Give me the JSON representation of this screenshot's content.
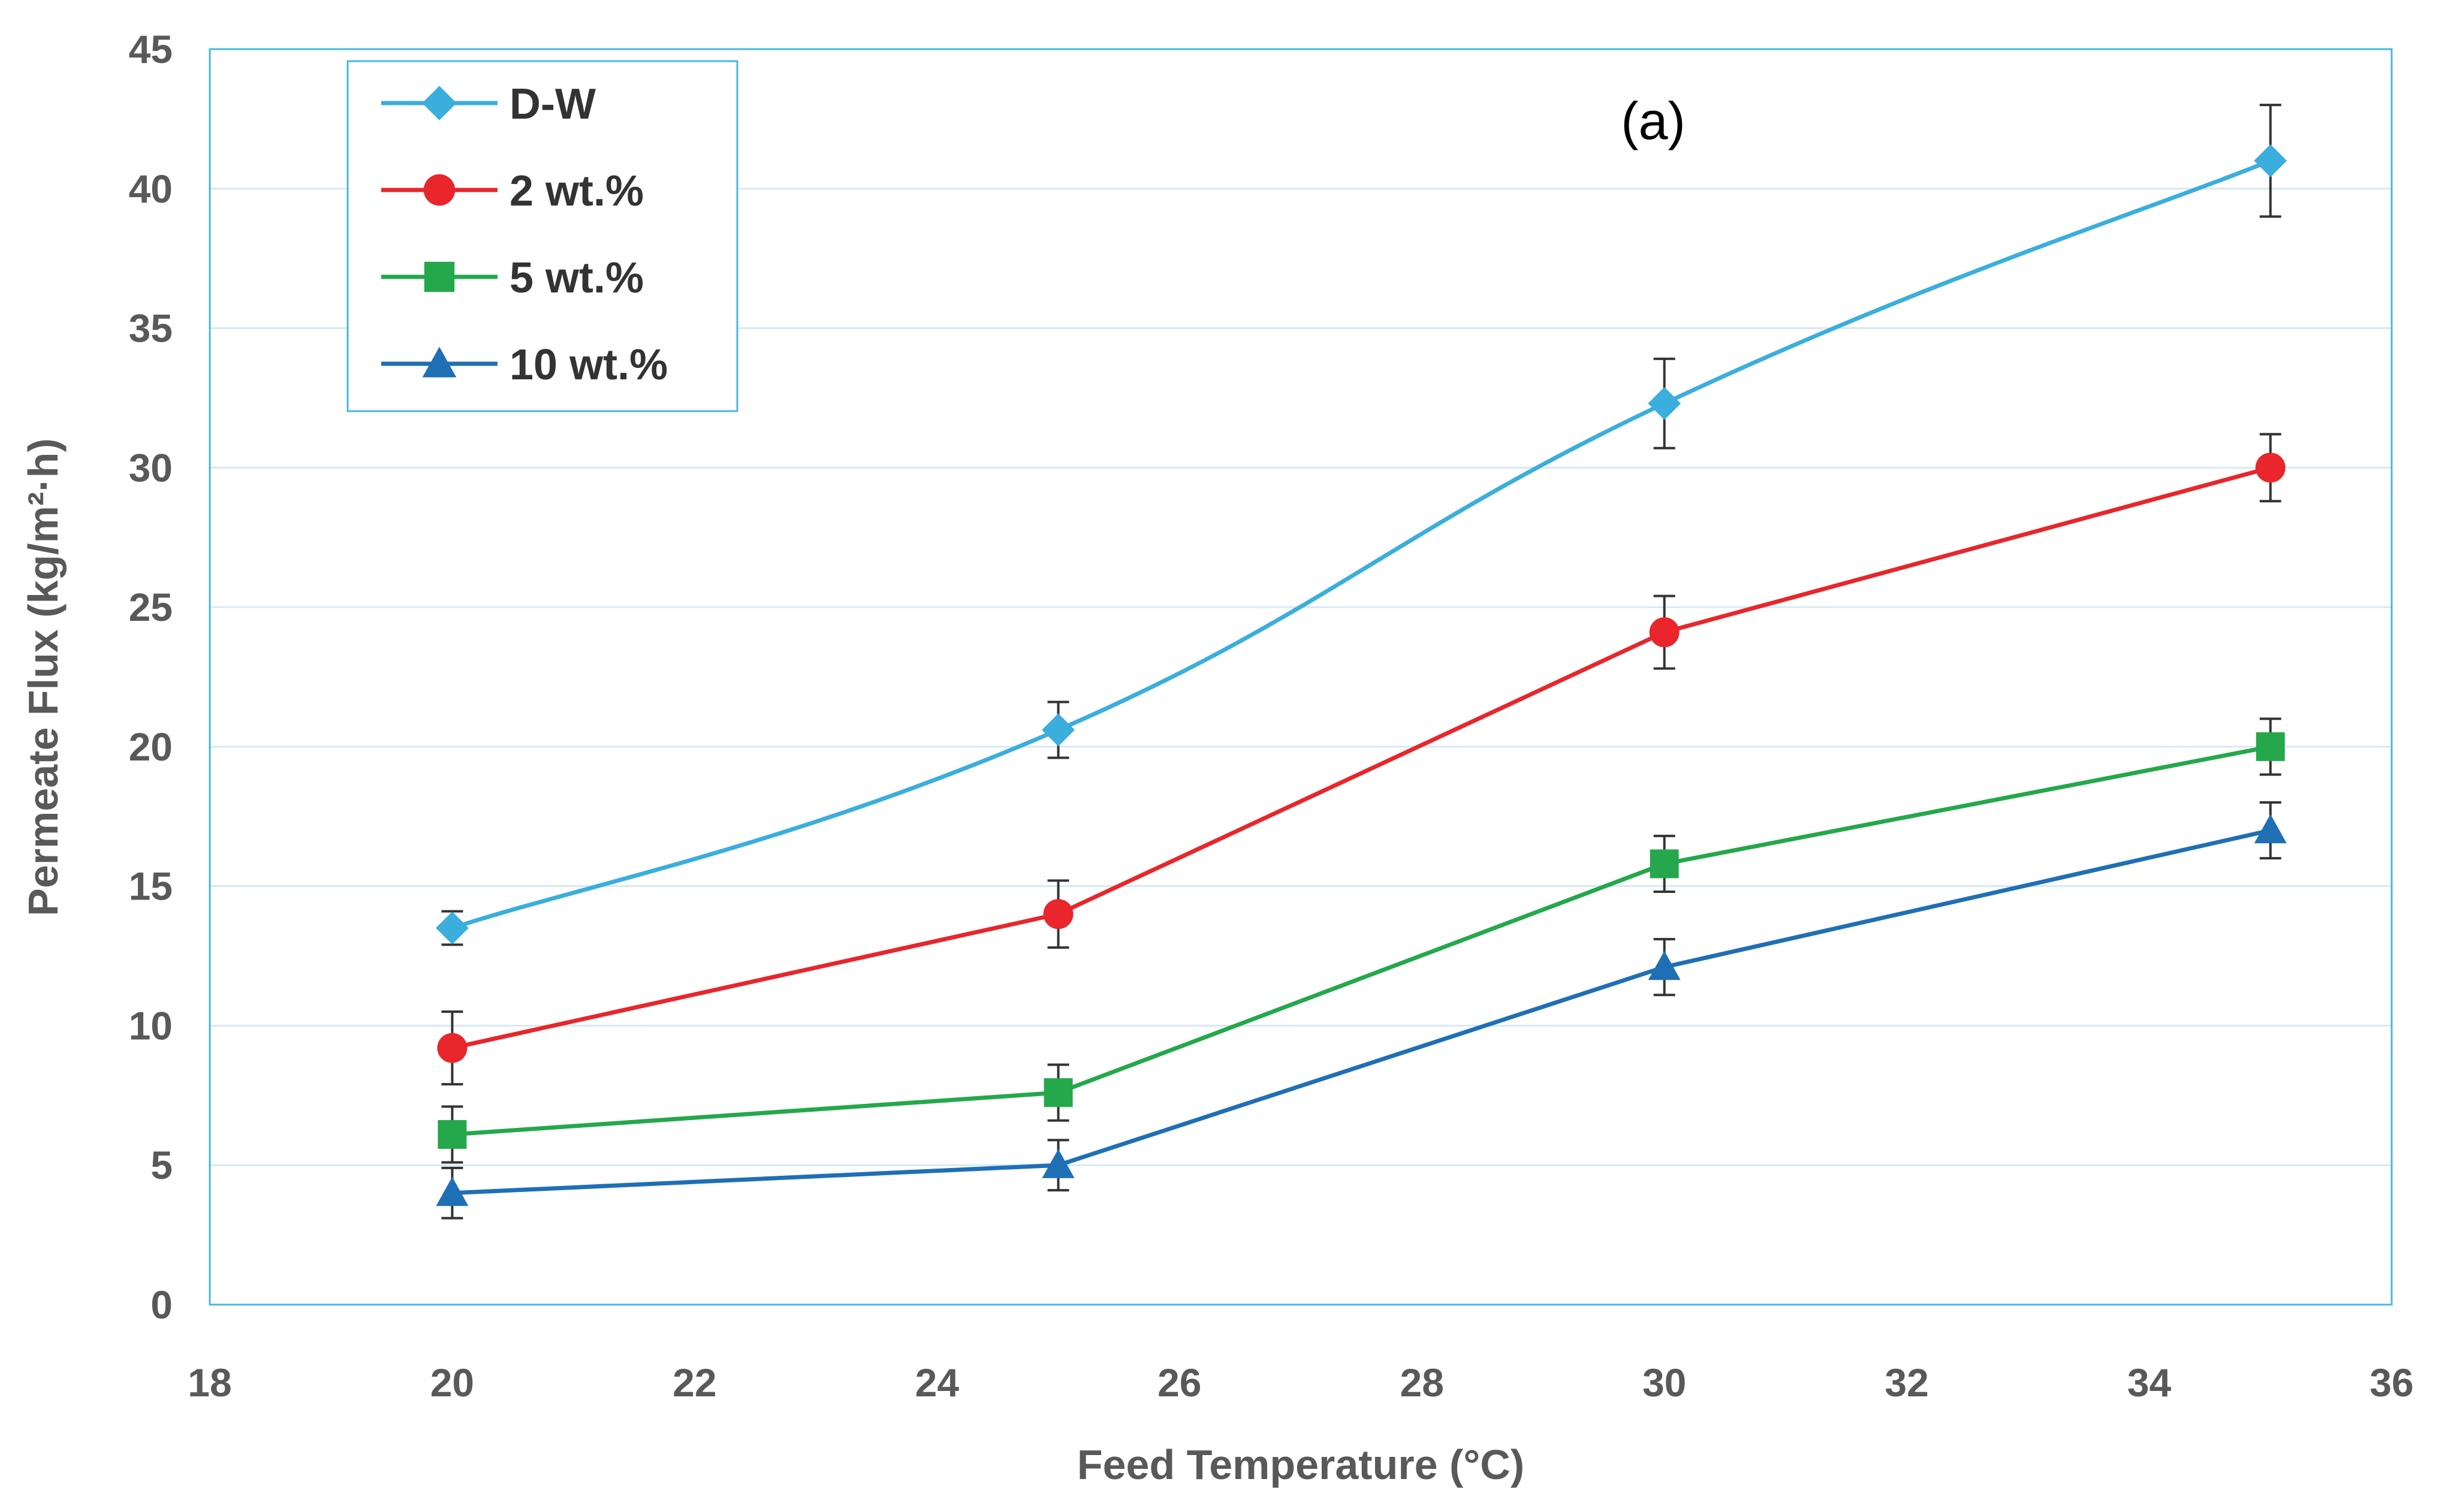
{
  "chart_data": {
    "type": "line",
    "title": "",
    "annotation": "(a)",
    "xlabel": "Feed Temperature (°C)",
    "ylabel": "Permeate Flux (kg/m²·h)",
    "xlim": [
      18,
      36
    ],
    "ylim": [
      0,
      45
    ],
    "x_ticks": [
      18,
      20,
      22,
      24,
      26,
      28,
      30,
      32,
      34,
      36
    ],
    "y_ticks": [
      0,
      5,
      10,
      15,
      20,
      25,
      30,
      35,
      40,
      45
    ],
    "grid": "horizontal",
    "legend_position": "top-left",
    "x": [
      20,
      25,
      30,
      35
    ],
    "series": [
      {
        "name": "D-W",
        "color": "#3AAEDD",
        "marker": "diamond",
        "smooth": true,
        "values": [
          13.5,
          20.6,
          32.3,
          41.0
        ],
        "errors": [
          0.6,
          1.0,
          1.6,
          2.0
        ]
      },
      {
        "name": "2 wt.%",
        "color": "#E8262B",
        "marker": "circle",
        "smooth": false,
        "values": [
          9.2,
          14.0,
          24.1,
          30.0
        ],
        "errors": [
          1.3,
          1.2,
          1.3,
          1.2
        ]
      },
      {
        "name": "5 wt.%",
        "color": "#24A84B",
        "marker": "square",
        "smooth": false,
        "values": [
          6.1,
          7.6,
          15.8,
          20.0
        ],
        "errors": [
          1.0,
          1.0,
          1.0,
          1.0
        ]
      },
      {
        "name": "10 wt.%",
        "color": "#1F6FB5",
        "marker": "triangle",
        "smooth": false,
        "values": [
          4.0,
          5.0,
          12.1,
          17.0
        ],
        "errors": [
          0.9,
          0.9,
          1.0,
          1.0
        ]
      }
    ]
  }
}
